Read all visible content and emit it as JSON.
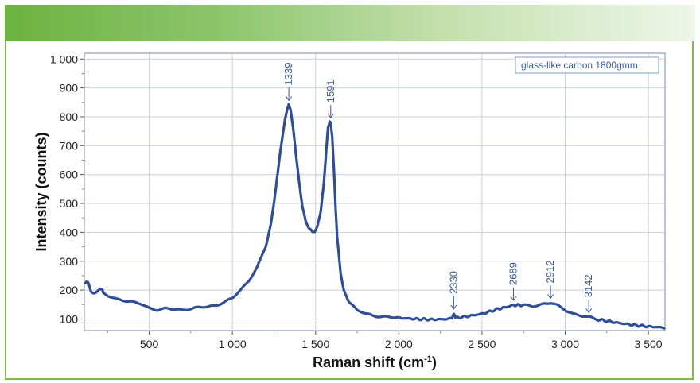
{
  "chart_data": {
    "type": "line",
    "title": "",
    "xlabel": "Raman shift (cm",
    "xlabel_sup": "-1",
    "xlabel_suffix": ")",
    "ylabel": "Intensity (counts)",
    "xlim": [
      110,
      3600
    ],
    "ylim": [
      60,
      1020
    ],
    "x_ticks": [
      500,
      1000,
      1500,
      2000,
      2500,
      3000,
      3500
    ],
    "x_tick_labels": [
      "500",
      "1 000",
      "1 500",
      "2 000",
      "2 500",
      "3 000",
      "3 500"
    ],
    "y_ticks": [
      100,
      200,
      300,
      400,
      500,
      600,
      700,
      800,
      900,
      1000
    ],
    "y_tick_labels": [
      "100",
      "200",
      "300",
      "400",
      "500",
      "600",
      "700",
      "800",
      "900",
      "1 000"
    ],
    "grid": true,
    "legend_position": "top-right",
    "series": [
      {
        "name": "glass-like carbon 1800gmm",
        "color": "#2f4e96",
        "x": [
          110,
          130,
          150,
          200,
          250,
          300,
          350,
          400,
          450,
          500,
          550,
          600,
          650,
          700,
          750,
          800,
          850,
          900,
          950,
          1000,
          1050,
          1100,
          1150,
          1200,
          1225,
          1250,
          1275,
          1300,
          1315,
          1330,
          1339,
          1350,
          1365,
          1380,
          1400,
          1420,
          1440,
          1460,
          1480,
          1495,
          1510,
          1530,
          1550,
          1565,
          1575,
          1585,
          1591,
          1600,
          1610,
          1620,
          1630,
          1650,
          1670,
          1700,
          1750,
          1800,
          1850,
          1900,
          1950,
          2000,
          2100,
          2200,
          2300,
          2320,
          2330,
          2340,
          2400,
          2500,
          2600,
          2689,
          2750,
          2800,
          2850,
          2912,
          2950,
          3000,
          3050,
          3100,
          3142,
          3200,
          3300,
          3400,
          3500,
          3600
        ],
        "y": [
          240,
          215,
          205,
          195,
          180,
          170,
          165,
          158,
          152,
          138,
          132,
          136,
          133,
          132,
          136,
          140,
          142,
          148,
          158,
          172,
          200,
          235,
          280,
          350,
          410,
          500,
          620,
          730,
          790,
          830,
          840,
          820,
          760,
          680,
          580,
          490,
          440,
          415,
          400,
          400,
          420,
          470,
          570,
          690,
          760,
          785,
          780,
          730,
          620,
          490,
          380,
          260,
          200,
          160,
          130,
          118,
          112,
          108,
          106,
          104,
          100,
          98,
          100,
          104,
          118,
          104,
          108,
          118,
          135,
          148,
          148,
          145,
          150,
          155,
          148,
          132,
          118,
          110,
          106,
          98,
          88,
          80,
          74,
          70
        ]
      }
    ],
    "annotations": [
      {
        "x": 1339,
        "y": 840,
        "label": "1339"
      },
      {
        "x": 1591,
        "y": 780,
        "label": "1591"
      },
      {
        "x": 2330,
        "y": 118,
        "label": "2330"
      },
      {
        "x": 2689,
        "y": 148,
        "label": "2689"
      },
      {
        "x": 2912,
        "y": 155,
        "label": "2912"
      },
      {
        "x": 3142,
        "y": 106,
        "label": "3142"
      }
    ]
  }
}
